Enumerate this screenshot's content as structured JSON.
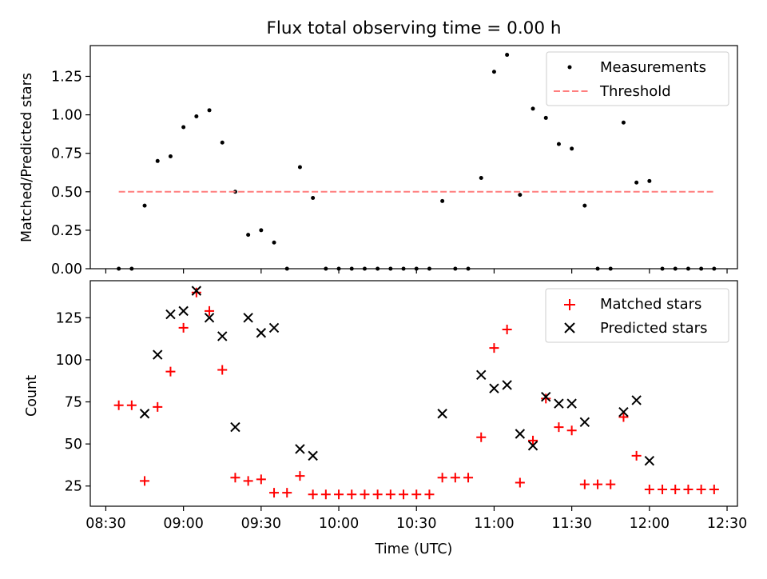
{
  "figure": {
    "title": "Flux total observing time = 0.00 h",
    "xlabel": "Time (UTC)"
  },
  "colors": {
    "measurement": "#000000",
    "threshold": "#ff7f7f",
    "matched": "#ff0000",
    "predicted": "#000000"
  },
  "chart_data": [
    {
      "type": "scatter",
      "ylabel": "Matched/Predicted stars",
      "ylim": [
        0,
        1.45
      ],
      "xlim": [
        "08:24",
        "12:34"
      ],
      "yticks": [
        "0.00",
        "0.25",
        "0.50",
        "0.75",
        "1.00",
        "1.25"
      ],
      "grid": false,
      "legend_position": "top-right",
      "series": [
        {
          "name": "Measurements",
          "marker": "dot",
          "x": [
            "08:35",
            "08:40",
            "08:45",
            "08:50",
            "08:55",
            "09:00",
            "09:05",
            "09:10",
            "09:15",
            "09:20",
            "09:25",
            "09:30",
            "09:35",
            "09:40",
            "09:45",
            "09:50",
            "09:55",
            "10:00",
            "10:05",
            "10:10",
            "10:15",
            "10:20",
            "10:25",
            "10:30",
            "10:35",
            "10:40",
            "10:45",
            "10:50",
            "10:55",
            "11:00",
            "11:05",
            "11:10",
            "11:15",
            "11:20",
            "11:25",
            "11:30",
            "11:35",
            "11:40",
            "11:45",
            "11:50",
            "11:55",
            "12:00",
            "12:05",
            "12:10",
            "12:15",
            "12:20",
            "12:25"
          ],
          "y": [
            0,
            0,
            0.41,
            0.7,
            0.73,
            0.92,
            0.99,
            1.03,
            0.82,
            0.5,
            0.22,
            0.25,
            0.17,
            0,
            0.66,
            0.46,
            0,
            0,
            0,
            0,
            0,
            0,
            0,
            0,
            0,
            0.44,
            0,
            0,
            0.59,
            1.28,
            1.39,
            0.48,
            1.04,
            0.98,
            0.81,
            0.78,
            0.41,
            0,
            0,
            0.95,
            0.56,
            0.57,
            0,
            0,
            0,
            0,
            0
          ]
        },
        {
          "name": "Threshold",
          "marker": "dashed-line",
          "x": [
            "08:35",
            "12:25"
          ],
          "y": [
            0.5,
            0.5
          ]
        }
      ]
    },
    {
      "type": "scatter",
      "ylabel": "Count",
      "ylim": [
        13,
        147
      ],
      "xlim": [
        "08:24",
        "12:34"
      ],
      "yticks": [
        "25",
        "50",
        "75",
        "100",
        "125"
      ],
      "xticks": [
        "08:30",
        "09:00",
        "09:30",
        "10:00",
        "10:30",
        "11:00",
        "11:30",
        "12:00",
        "12:30"
      ],
      "grid": false,
      "legend_position": "top-right",
      "series": [
        {
          "name": "Matched stars",
          "marker": "plus",
          "x": [
            "08:35",
            "08:40",
            "08:45",
            "08:50",
            "08:55",
            "09:00",
            "09:05",
            "09:10",
            "09:15",
            "09:20",
            "09:25",
            "09:30",
            "09:35",
            "09:40",
            "09:45",
            "09:50",
            "09:55",
            "10:00",
            "10:05",
            "10:10",
            "10:15",
            "10:20",
            "10:25",
            "10:30",
            "10:35",
            "10:40",
            "10:45",
            "10:50",
            "10:55",
            "11:00",
            "11:05",
            "11:10",
            "11:15",
            "11:20",
            "11:25",
            "11:30",
            "11:35",
            "11:40",
            "11:45",
            "11:50",
            "11:55",
            "12:00",
            "12:05",
            "12:10",
            "12:15",
            "12:20",
            "12:25"
          ],
          "y": [
            73,
            73,
            28,
            72,
            93,
            119,
            140,
            129,
            94,
            30,
            28,
            29,
            21,
            21,
            31,
            20,
            20,
            20,
            20,
            20,
            20,
            20,
            20,
            20,
            20,
            30,
            30,
            30,
            54,
            107,
            118,
            27,
            52,
            77,
            60,
            58,
            26,
            26,
            26,
            66,
            43,
            23,
            23,
            23,
            23,
            23,
            23
          ]
        },
        {
          "name": "Predicted stars",
          "marker": "x",
          "x": [
            "08:45",
            "08:50",
            "08:55",
            "09:00",
            "09:05",
            "09:10",
            "09:15",
            "09:20",
            "09:25",
            "09:30",
            "09:35",
            "09:45",
            "09:50",
            "10:40",
            "10:55",
            "11:00",
            "11:05",
            "11:10",
            "11:15",
            "11:20",
            "11:25",
            "11:30",
            "11:35",
            "11:50",
            "11:55",
            "12:00"
          ],
          "y": [
            68,
            103,
            127,
            129,
            141,
            125,
            114,
            60,
            125,
            116,
            119,
            47,
            43,
            68,
            91,
            83,
            85,
            56,
            49,
            78,
            74,
            74,
            63,
            69,
            76,
            40
          ]
        }
      ]
    }
  ]
}
